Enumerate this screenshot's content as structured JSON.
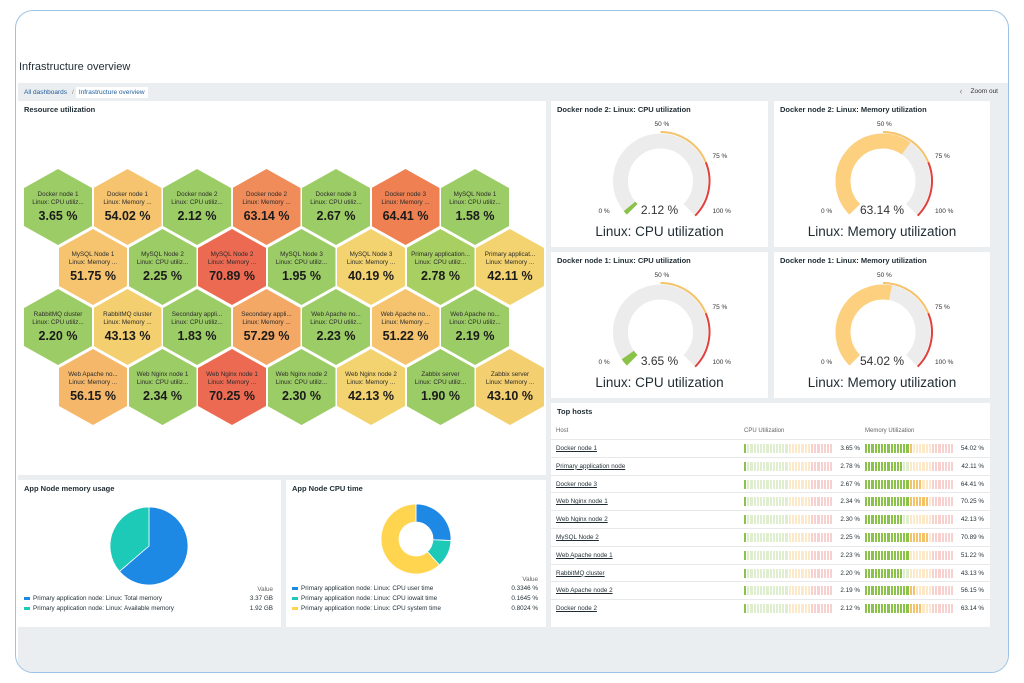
{
  "page": {
    "title": "Infrastructure overview",
    "breadcrumbs": [
      "All dashboards",
      "Infrastructure overview"
    ],
    "zoom_out": "Zoom out"
  },
  "resource": {
    "title": "Resource utilization",
    "hexes": [
      {
        "name": "Docker node 1",
        "sub": "Linux: CPU utiliz...",
        "value": "3.65 %",
        "color": "#9ccc65"
      },
      {
        "name": "Docker node 1",
        "sub": "Linux: Memory ...",
        "value": "54.02 %",
        "color": "#f6c46f"
      },
      {
        "name": "Docker node 2",
        "sub": "Linux: CPU utiliz...",
        "value": "2.12 %",
        "color": "#9ccc65"
      },
      {
        "name": "Docker node 2",
        "sub": "Linux: Memory ...",
        "value": "63.14 %",
        "color": "#f08c5a"
      },
      {
        "name": "Docker node 3",
        "sub": "Linux: CPU utiliz...",
        "value": "2.67 %",
        "color": "#9ccc65"
      },
      {
        "name": "Docker node 3",
        "sub": "Linux: Memory ...",
        "value": "64.41 %",
        "color": "#ee8052"
      },
      {
        "name": "MySQL Node 1",
        "sub": "Linux: CPU utiliz...",
        "value": "1.58 %",
        "color": "#9ccc65"
      },
      {
        "name": "MySQL Node 1",
        "sub": "Linux: Memory ...",
        "value": "51.75 %",
        "color": "#f6c46f"
      },
      {
        "name": "MySQL Node 2",
        "sub": "Linux: CPU utiliz...",
        "value": "2.25 %",
        "color": "#9ccc65"
      },
      {
        "name": "MySQL Node 2",
        "sub": "Linux: Memory ...",
        "value": "70.89 %",
        "color": "#ec6a52"
      },
      {
        "name": "MySQL Node 3",
        "sub": "Linux: CPU utiliz...",
        "value": "1.95 %",
        "color": "#9ccc65"
      },
      {
        "name": "MySQL Node 3",
        "sub": "Linux: Memory ...",
        "value": "40.19 %",
        "color": "#f3d36f"
      },
      {
        "name": "Primary application...",
        "sub": "Linux: CPU utiliz...",
        "value": "2.78 %",
        "color": "#a8cf62"
      },
      {
        "name": "Primary applicat...",
        "sub": "Linux: Memory ...",
        "value": "42.11 %",
        "color": "#f3d36f"
      },
      {
        "name": "RabbitMQ cluster",
        "sub": "Linux: CPU utiliz...",
        "value": "2.20 %",
        "color": "#9ccc65"
      },
      {
        "name": "RabbitMQ cluster",
        "sub": "Linux: Memory ...",
        "value": "43.13 %",
        "color": "#f4cf6f"
      },
      {
        "name": "Secondary appli...",
        "sub": "Linux: CPU utiliz...",
        "value": "1.83 %",
        "color": "#9ccc65"
      },
      {
        "name": "Secondary appli...",
        "sub": "Linux: Memory ...",
        "value": "57.29 %",
        "color": "#f3a866"
      },
      {
        "name": "Web Apache no...",
        "sub": "Linux: CPU utiliz...",
        "value": "2.23 %",
        "color": "#9ccc65"
      },
      {
        "name": "Web Apache no...",
        "sub": "Linux: Memory ...",
        "value": "51.22 %",
        "color": "#f6c46f"
      },
      {
        "name": "Web Apache no...",
        "sub": "Linux: CPU utiliz...",
        "value": "2.19 %",
        "color": "#9ccc65"
      },
      {
        "name": "Web Apache no...",
        "sub": "Linux: Memory ...",
        "value": "56.15 %",
        "color": "#f5b86a"
      },
      {
        "name": "Web Nginx node 1",
        "sub": "Linux: CPU utiliz...",
        "value": "2.34 %",
        "color": "#9ccc65"
      },
      {
        "name": "Web Nginx node 1",
        "sub": "Linux: Memory ...",
        "value": "70.25 %",
        "color": "#ec6a52"
      },
      {
        "name": "Web Nginx node 2",
        "sub": "Linux: CPU utiliz...",
        "value": "2.30 %",
        "color": "#9ccc65"
      },
      {
        "name": "Web Nginx node 2",
        "sub": "Linux: Memory ...",
        "value": "42.13 %",
        "color": "#f3d36f"
      },
      {
        "name": "Zabbix server",
        "sub": "Linux: CPU utiliz...",
        "value": "1.90 %",
        "color": "#9ccc65"
      },
      {
        "name": "Zabbix server",
        "sub": "Linux: Memory ...",
        "value": "43.10 %",
        "color": "#f4cf6f"
      }
    ]
  },
  "gauges": [
    {
      "title": "Docker node 2: Linux: CPU utilization",
      "value": "2.12 %",
      "fraction": 0.0212,
      "color": "#8bc34a",
      "description": "Linux: CPU utilization",
      "min": "0 %",
      "mid": "50 %",
      "warn": "75 %",
      "max": "100 %"
    },
    {
      "title": "Docker node 2: Linux: Memory utilization",
      "value": "63.14 %",
      "fraction": 0.6314,
      "color": "#fcd07e",
      "description": "Linux: Memory utilization",
      "min": "0 %",
      "mid": "50 %",
      "warn": "75 %",
      "max": "100 %"
    },
    {
      "title": "Docker node 1: Linux: CPU utilization",
      "value": "3.65 %",
      "fraction": 0.0365,
      "color": "#8bc34a",
      "description": "Linux: CPU utilization",
      "min": "0 %",
      "mid": "50 %",
      "warn": "75 %",
      "max": "100 %"
    },
    {
      "title": "Docker node 1: Linux: Memory utilization",
      "value": "54.02 %",
      "fraction": 0.5402,
      "color": "#fcd07e",
      "description": "Linux: Memory utilization",
      "min": "0 %",
      "mid": "50 %",
      "warn": "75 %",
      "max": "100 %"
    }
  ],
  "memory_pie": {
    "title": "App Node memory usage",
    "value_header": "Value",
    "legend": [
      {
        "label": "Primary application node: Linux: Total memory",
        "value": "3.37 GB",
        "color": "#1e88e5"
      },
      {
        "label": "Primary application node: Linux: Available memory",
        "value": "1.92 GB",
        "color": "#1dc9b7"
      }
    ],
    "chart_data": {
      "type": "pie",
      "categories": [
        "Primary application node: Linux: Total memory",
        "Primary application node: Linux: Available memory"
      ],
      "values": [
        3.37,
        1.92
      ],
      "colors": [
        "#1e88e5",
        "#1dc9b7"
      ]
    }
  },
  "cpu_donut": {
    "title": "App Node CPU time",
    "value_header": "Value",
    "legend": [
      {
        "label": "Primary application node: Linux: CPU user time",
        "value": "0.3346 %",
        "color": "#1e88e5"
      },
      {
        "label": "Primary application node: Linux: CPU iowait time",
        "value": "0.1645 %",
        "color": "#1dc9b7"
      },
      {
        "label": "Primary application node: Linux: CPU system time",
        "value": "0.8024 %",
        "color": "#ffd54f"
      }
    ],
    "chart_data": {
      "type": "pie",
      "categories": [
        "Primary application node: Linux: CPU user time",
        "Primary application node: Linux: CPU iowait time",
        "Primary application node: Linux: CPU system time"
      ],
      "values": [
        0.3346,
        0.1645,
        0.8024
      ],
      "colors": [
        "#1e88e5",
        "#1dc9b7",
        "#ffd54f"
      ]
    }
  },
  "top_hosts": {
    "title": "Top hosts",
    "headers": {
      "host": "Host",
      "cpu": "CPU Utilization",
      "mem": "Memory Utilization"
    },
    "rows": [
      {
        "host": "Docker node 1",
        "cpu": "3.65 %",
        "cpu_frac": 0.0365,
        "mem": "54.02 %",
        "mem_frac": 0.5402
      },
      {
        "host": "Primary application node",
        "cpu": "2.78 %",
        "cpu_frac": 0.0278,
        "mem": "42.11 %",
        "mem_frac": 0.4211
      },
      {
        "host": "Docker node 3",
        "cpu": "2.67 %",
        "cpu_frac": 0.0267,
        "mem": "64.41 %",
        "mem_frac": 0.6441
      },
      {
        "host": "Web Nginx node 1",
        "cpu": "2.34 %",
        "cpu_frac": 0.0234,
        "mem": "70.25 %",
        "mem_frac": 0.7025
      },
      {
        "host": "Web Nginx node 2",
        "cpu": "2.30 %",
        "cpu_frac": 0.023,
        "mem": "42.13 %",
        "mem_frac": 0.4213
      },
      {
        "host": "MySQL Node 2",
        "cpu": "2.25 %",
        "cpu_frac": 0.0225,
        "mem": "70.89 %",
        "mem_frac": 0.7089
      },
      {
        "host": "Web Apache node 1",
        "cpu": "2.23 %",
        "cpu_frac": 0.0223,
        "mem": "51.22 %",
        "mem_frac": 0.5122
      },
      {
        "host": "RabbitMQ cluster",
        "cpu": "2.20 %",
        "cpu_frac": 0.022,
        "mem": "43.13 %",
        "mem_frac": 0.4313
      },
      {
        "host": "Web Apache node 2",
        "cpu": "2.19 %",
        "cpu_frac": 0.0219,
        "mem": "56.15 %",
        "mem_frac": 0.5615
      },
      {
        "host": "Docker node 2",
        "cpu": "2.12 %",
        "cpu_frac": 0.0212,
        "mem": "63.14 %",
        "mem_frac": 0.6314
      }
    ]
  }
}
